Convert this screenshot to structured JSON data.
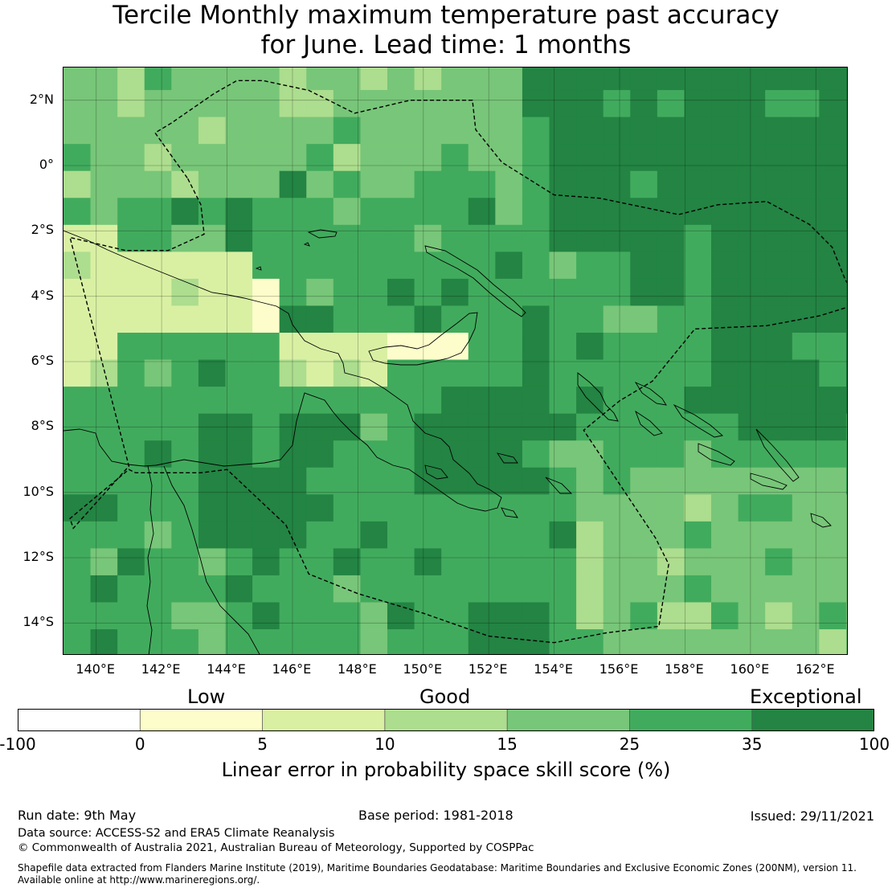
{
  "title": {
    "line1": "Tercile Monthly maximum temperature past accuracy",
    "line2": "for June. Lead time: 1 months"
  },
  "map": {
    "lon_range": [
      139,
      163
    ],
    "lat_range": [
      -15,
      3
    ],
    "grid": true,
    "x_ticks": [
      {
        "value": 140,
        "label": "140°E"
      },
      {
        "value": 142,
        "label": "142°E"
      },
      {
        "value": 144,
        "label": "144°E"
      },
      {
        "value": 146,
        "label": "146°E"
      },
      {
        "value": 148,
        "label": "148°E"
      },
      {
        "value": 150,
        "label": "150°E"
      },
      {
        "value": 152,
        "label": "152°E"
      },
      {
        "value": 154,
        "label": "154°E"
      },
      {
        "value": 156,
        "label": "156°E"
      },
      {
        "value": 158,
        "label": "158°E"
      },
      {
        "value": 160,
        "label": "160°E"
      },
      {
        "value": 162,
        "label": "162°E"
      }
    ],
    "y_ticks": [
      {
        "value": 2,
        "label": "2°N"
      },
      {
        "value": 0,
        "label": "0°"
      },
      {
        "value": -2,
        "label": "2°S"
      },
      {
        "value": -4,
        "label": "4°S"
      },
      {
        "value": -6,
        "label": "6°S"
      },
      {
        "value": -8,
        "label": "8°S"
      },
      {
        "value": -10,
        "label": "10°S"
      },
      {
        "value": -12,
        "label": "12°S"
      },
      {
        "value": -14,
        "label": "14°S"
      }
    ],
    "colors": [
      "#ffffff",
      "#fdfdcb",
      "#d9f0a3",
      "#addd8e",
      "#78c679",
      "#41ab5d",
      "#238443"
    ],
    "eez_boundary": [
      [
        142.8,
        -0.4
      ],
      [
        143.2,
        -1.2
      ],
      [
        143.3,
        -2.1
      ],
      [
        142.2,
        -2.6
      ],
      [
        140.9,
        -2.6
      ],
      [
        139.2,
        -2.2
      ],
      [
        141.0,
        -9.2
      ],
      [
        139.3,
        -11.1
      ],
      [
        139.2,
        -10.8
      ],
      [
        141.0,
        -9.3
      ],
      [
        141.2,
        -9.4
      ],
      [
        143.2,
        -9.4
      ],
      [
        144.0,
        -9.3
      ],
      [
        145.8,
        -11.0
      ],
      [
        146.5,
        -12.5
      ],
      [
        148.0,
        -13.1
      ],
      [
        150.0,
        -13.7
      ],
      [
        152.0,
        -14.4
      ],
      [
        154.0,
        -14.6
      ],
      [
        155.6,
        -14.3
      ],
      [
        157.2,
        -14.1
      ],
      [
        157.5,
        -12.2
      ],
      [
        157.1,
        -11.4
      ],
      [
        154.9,
        -8.1
      ],
      [
        156.0,
        -7.2
      ],
      [
        157.0,
        -6.6
      ],
      [
        158.3,
        -5.0
      ],
      [
        160.5,
        -4.9
      ],
      [
        162.1,
        -4.6
      ],
      [
        163.4,
        -4.2
      ],
      [
        162.9,
        -3.5
      ],
      [
        162.5,
        -2.5
      ],
      [
        161.8,
        -1.8
      ],
      [
        160.5,
        -1.1
      ],
      [
        159.0,
        -1.2
      ],
      [
        157.8,
        -1.5
      ],
      [
        155.4,
        -1.0
      ],
      [
        154.0,
        -0.9
      ],
      [
        152.4,
        0.1
      ],
      [
        151.6,
        1.1
      ],
      [
        151.5,
        2.0
      ],
      [
        149.6,
        2.0
      ],
      [
        147.9,
        1.6
      ],
      [
        146.5,
        2.3
      ],
      [
        145.1,
        2.6
      ],
      [
        144.3,
        2.6
      ],
      [
        143.6,
        2.2
      ],
      [
        142.3,
        1.3
      ],
      [
        141.8,
        1.0
      ],
      [
        142.8,
        -0.4
      ]
    ]
  },
  "colorbar": {
    "categories": [
      "Low",
      "Good",
      "Exceptional"
    ],
    "tick_labels": [
      "-100",
      "0",
      "5",
      "10",
      "15",
      "25",
      "35",
      "100"
    ],
    "label": "Linear error in probability space skill score (%)"
  },
  "footer": {
    "run_date": "Run date: 9th May",
    "base_period": "Base period: 1981-2018",
    "issued": "Issued: 29/11/2021",
    "data_source": "Data source: ACCESS-S2 and ERA5 Climate Reanalysis",
    "copyright": "© Commonwealth of Australia 2021, Australian Bureau of Meteorology, Supported by COSPPac",
    "shapefile_line1": "Shapefile data extracted from Flanders Marine Institute (2019), Maritime Boundaries Geodatabase: Maritime Boundaries and Exclusive Economic Zones (200NM), version 11.",
    "shapefile_line2": "Available online at http://www.marineregions.org/."
  }
}
